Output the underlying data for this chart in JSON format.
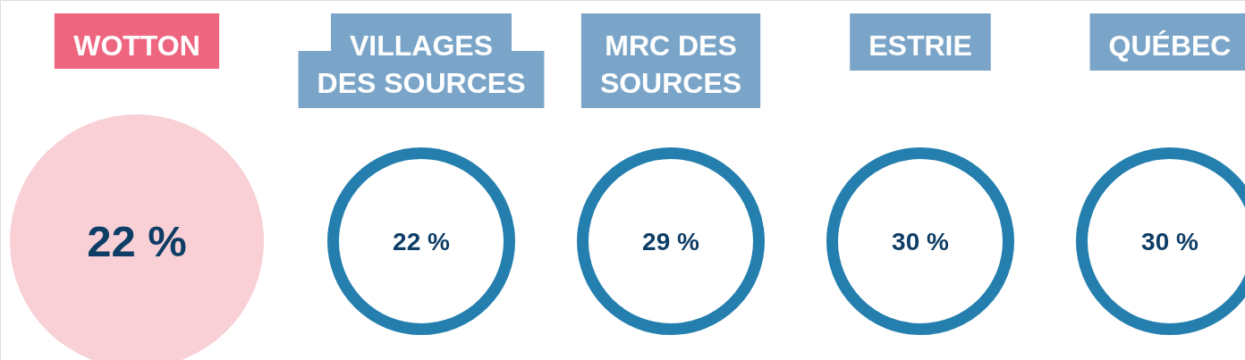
{
  "chart_data": {
    "type": "other",
    "categories": [
      "WOTTON",
      "VILLAGES DES SOURCES",
      "MRC DES SOURCES",
      "ESTRIE",
      "QUÉBEC"
    ],
    "values": [
      22,
      22,
      29,
      30,
      30
    ],
    "value_labels": [
      "22 %",
      "22 %",
      "29 %",
      "30 %",
      "30 %"
    ],
    "colors": [
      "#f8d0d5",
      "#247fae",
      "#247fae",
      "#247fae",
      "#247fae"
    ]
  }
}
